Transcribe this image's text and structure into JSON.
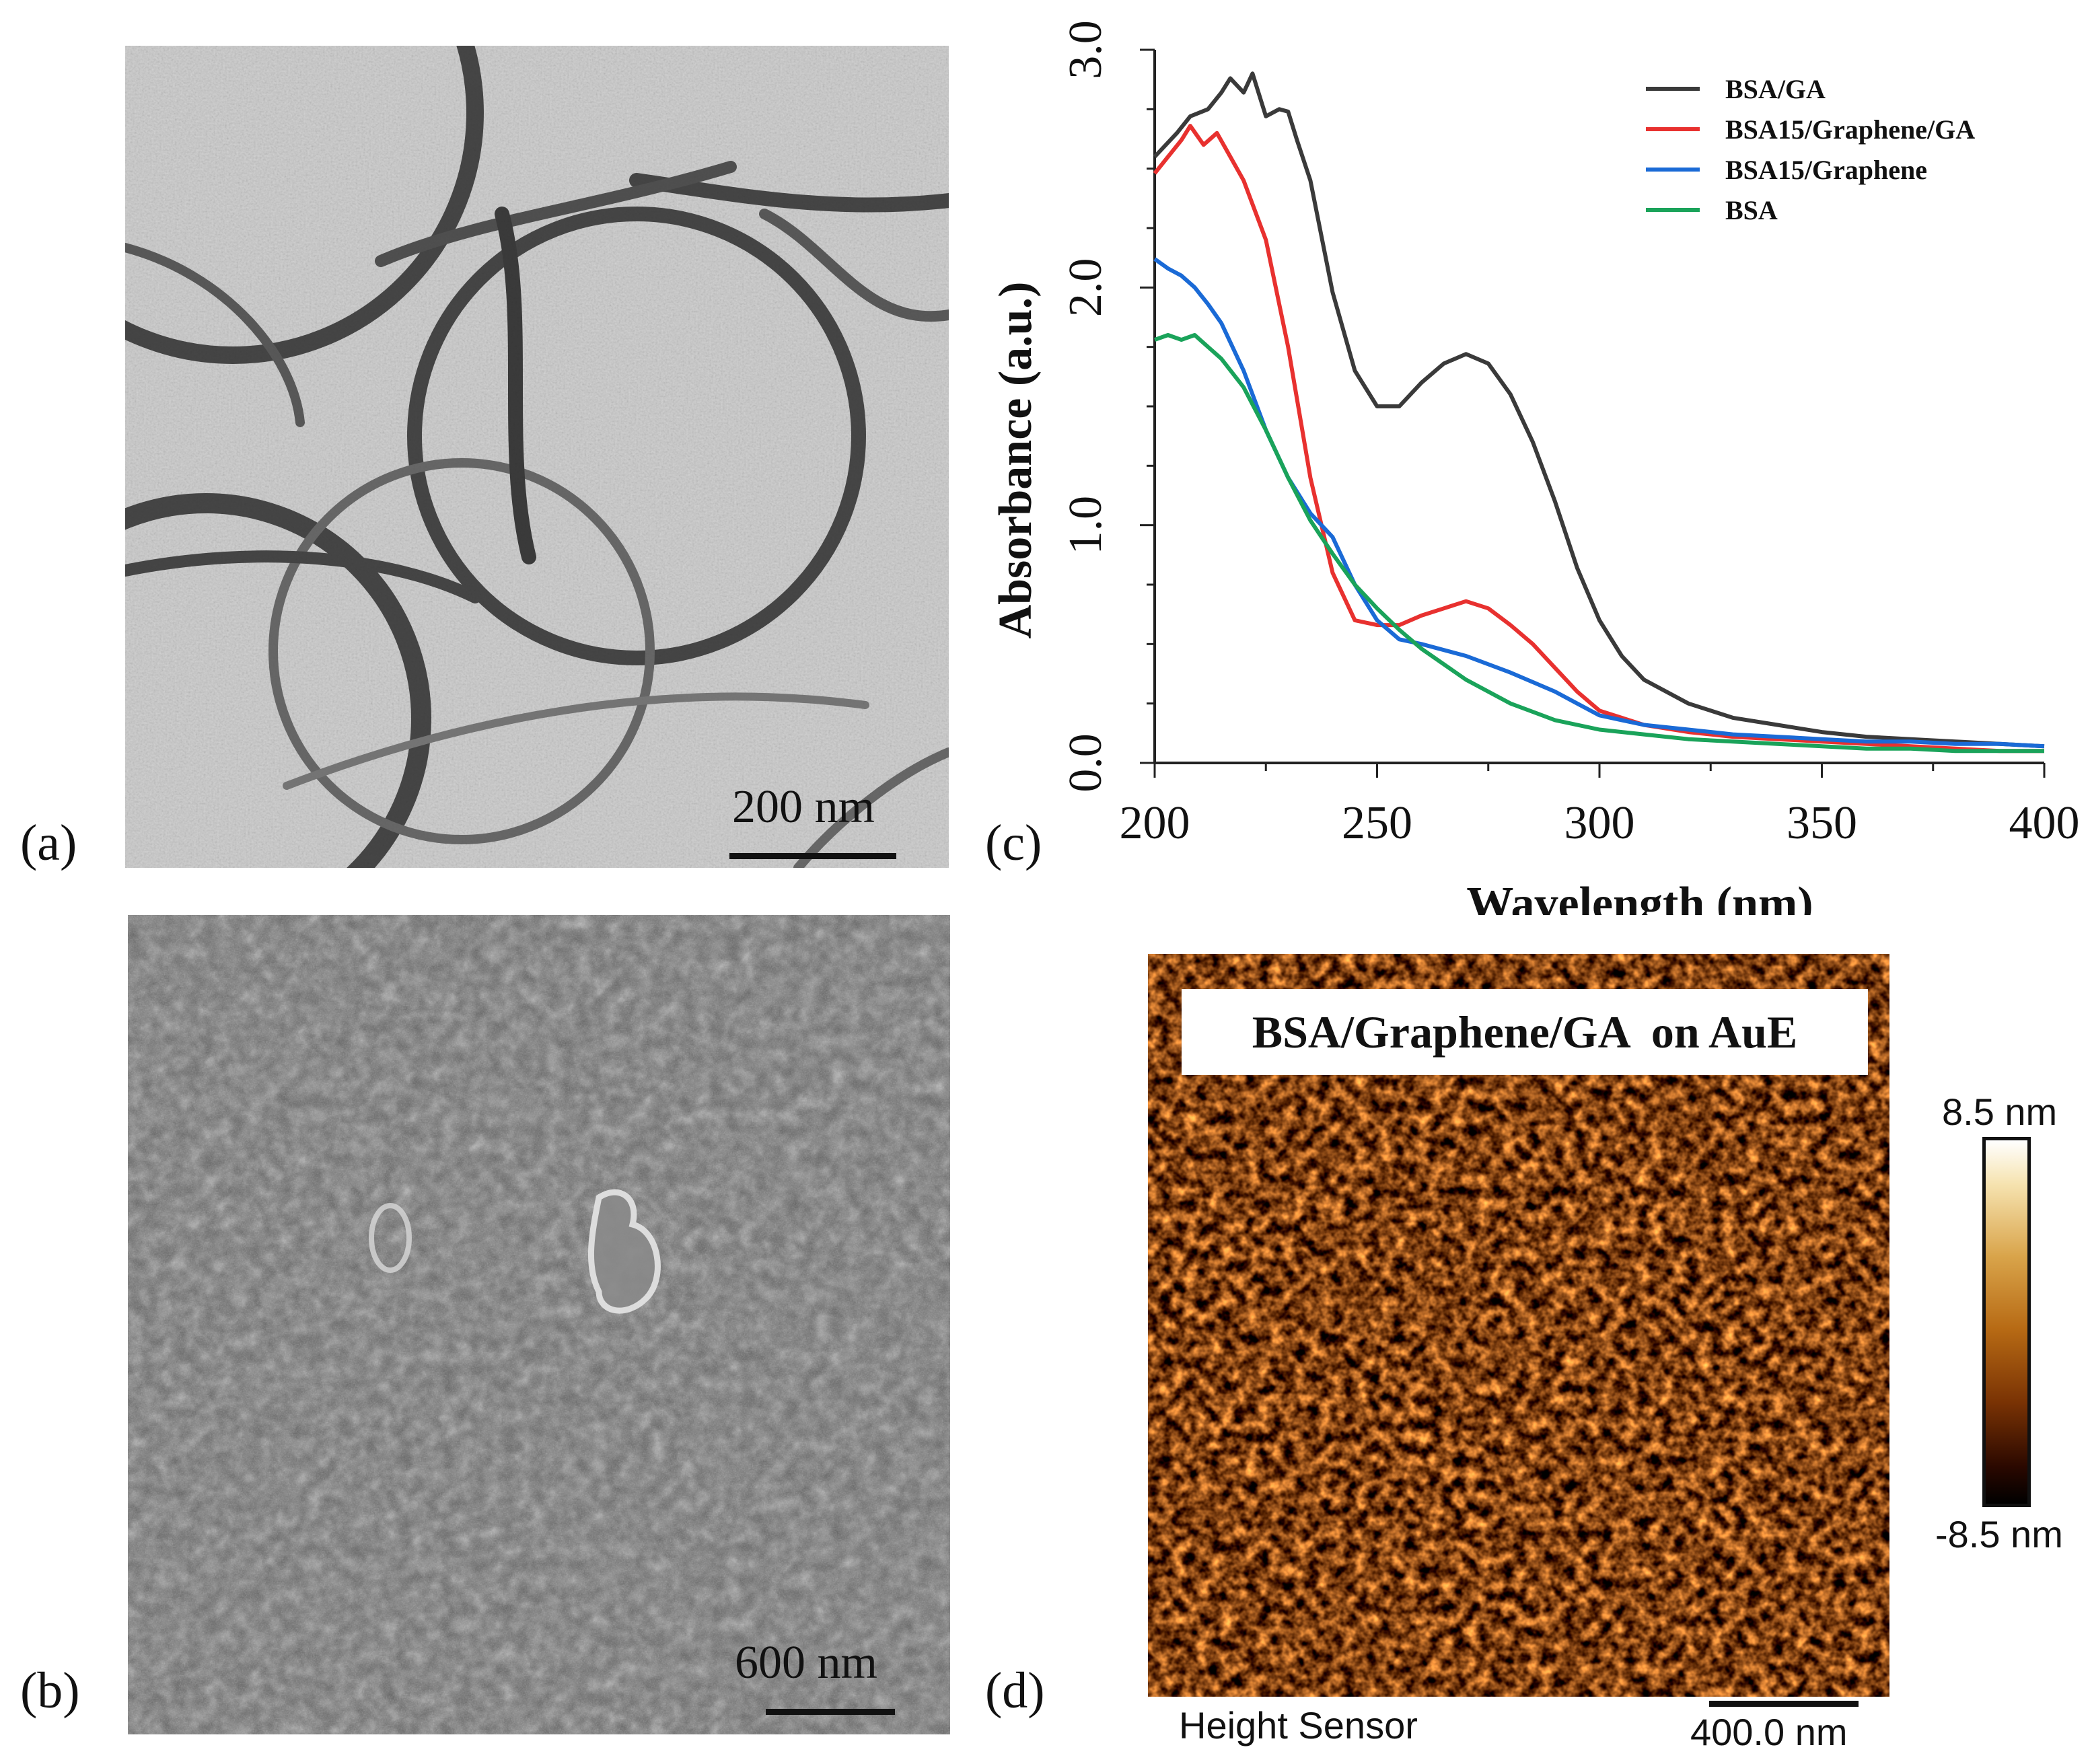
{
  "panels": {
    "a": {
      "label": "(a)",
      "scale_text": "200 nm"
    },
    "b": {
      "label": "(b)",
      "scale_text": "600 nm"
    },
    "c": {
      "label": "(c)"
    },
    "d": {
      "label": "(d)",
      "title": "BSA/Graphene/GA  on AuE",
      "colorbar_max": "8.5 nm",
      "colorbar_min": "-8.5 nm",
      "sensor_label": "Height Sensor",
      "scale_text": "400.0 nm"
    }
  },
  "chart_data": {
    "type": "line",
    "title": "",
    "xlabel": "Wavelength (nm)",
    "ylabel": "Absorbance (a.u.)",
    "xlim": [
      200,
      400
    ],
    "ylim": [
      0,
      3.0
    ],
    "x_ticks": [
      200,
      250,
      300,
      350,
      400
    ],
    "x_tick_labels": [
      "200",
      "250",
      "300",
      "350",
      "400"
    ],
    "y_ticks": [
      0,
      1,
      2,
      3
    ],
    "y_tick_labels": [
      "0.0",
      "1.0",
      "2.0",
      "3.0"
    ],
    "grid": false,
    "legend": "top-right",
    "series": [
      {
        "name": "BSA/GA",
        "color": "#3a3a3a",
        "x": [
          200,
          205,
          208,
          212,
          215,
          217,
          220,
          222,
          225,
          228,
          230,
          232,
          235,
          240,
          245,
          250,
          255,
          260,
          265,
          270,
          275,
          280,
          285,
          290,
          295,
          300,
          305,
          310,
          320,
          330,
          340,
          350,
          355,
          360,
          370,
          380,
          390,
          400
        ],
        "y": [
          2.55,
          2.65,
          2.72,
          2.75,
          2.82,
          2.88,
          2.82,
          2.9,
          2.72,
          2.75,
          2.74,
          2.62,
          2.45,
          1.98,
          1.65,
          1.5,
          1.5,
          1.6,
          1.68,
          1.72,
          1.68,
          1.55,
          1.35,
          1.1,
          0.82,
          0.6,
          0.45,
          0.35,
          0.25,
          0.19,
          0.16,
          0.13,
          0.12,
          0.11,
          0.1,
          0.09,
          0.08,
          0.07
        ]
      },
      {
        "name": "BSA15/Graphene/GA",
        "color": "#e8312f",
        "x": [
          200,
          203,
          206,
          208,
          211,
          214,
          217,
          220,
          225,
          230,
          235,
          240,
          245,
          250,
          255,
          260,
          265,
          270,
          275,
          280,
          285,
          290,
          295,
          300,
          310,
          320,
          330,
          340,
          350,
          360,
          370,
          380,
          390,
          400
        ],
        "y": [
          2.48,
          2.55,
          2.62,
          2.68,
          2.6,
          2.65,
          2.55,
          2.45,
          2.2,
          1.75,
          1.2,
          0.8,
          0.6,
          0.58,
          0.58,
          0.62,
          0.65,
          0.68,
          0.65,
          0.58,
          0.5,
          0.4,
          0.3,
          0.22,
          0.16,
          0.13,
          0.11,
          0.1,
          0.09,
          0.08,
          0.07,
          0.06,
          0.05,
          0.05
        ]
      },
      {
        "name": "BSA15/Graphene",
        "color": "#1a6ad6",
        "x": [
          200,
          203,
          206,
          209,
          212,
          215,
          220,
          225,
          230,
          235,
          240,
          245,
          250,
          255,
          260,
          270,
          280,
          290,
          295,
          300,
          310,
          320,
          330,
          340,
          350,
          360,
          370,
          380,
          390,
          400
        ],
        "y": [
          2.12,
          2.08,
          2.05,
          2.0,
          1.93,
          1.85,
          1.65,
          1.4,
          1.2,
          1.05,
          0.95,
          0.75,
          0.6,
          0.52,
          0.5,
          0.45,
          0.38,
          0.3,
          0.25,
          0.2,
          0.16,
          0.14,
          0.12,
          0.11,
          0.1,
          0.09,
          0.09,
          0.08,
          0.08,
          0.07
        ]
      },
      {
        "name": "BSA",
        "color": "#1aa35a",
        "x": [
          200,
          203,
          206,
          209,
          212,
          215,
          220,
          225,
          230,
          235,
          240,
          245,
          250,
          255,
          260,
          270,
          280,
          290,
          300,
          310,
          320,
          330,
          340,
          350,
          360,
          370,
          380,
          390,
          400
        ],
        "y": [
          1.78,
          1.8,
          1.78,
          1.8,
          1.75,
          1.7,
          1.58,
          1.4,
          1.2,
          1.02,
          0.88,
          0.75,
          0.65,
          0.56,
          0.48,
          0.35,
          0.25,
          0.18,
          0.14,
          0.12,
          0.1,
          0.09,
          0.08,
          0.07,
          0.06,
          0.06,
          0.05,
          0.05,
          0.05
        ]
      }
    ]
  }
}
